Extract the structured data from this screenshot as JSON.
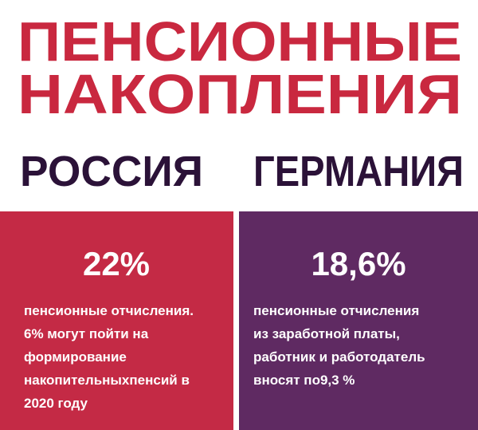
{
  "title": {
    "lines": [
      "ПЕНСИОННЫЕ",
      "НАКОПЛЕНИЯ"
    ]
  },
  "columns": [
    {
      "heading": "РОССИЯ",
      "stat": "22%",
      "lines": [
        "пенсионные отчисления.",
        "6% могут пойти на",
        "формирование",
        "накопительныхпенсий в",
        "2020 году"
      ]
    },
    {
      "heading": "ГЕРМАНИЯ",
      "stat": "18,6%",
      "lines": [
        "пенсионные отчисления",
        "из заработной платы,",
        "работник и работодатель",
        "вносят по9,3 %"
      ]
    }
  ]
}
